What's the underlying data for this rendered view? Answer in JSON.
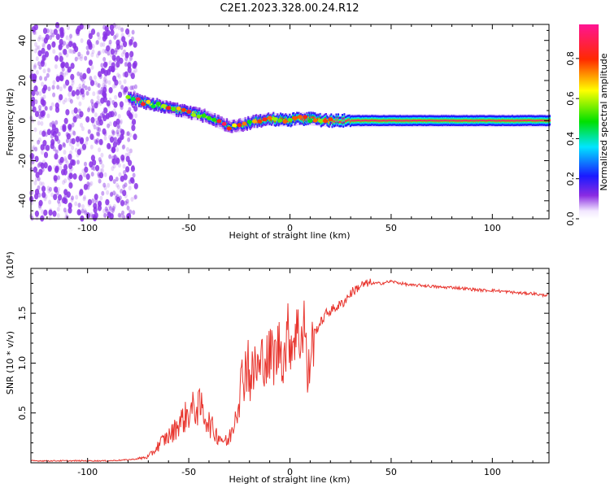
{
  "title": "C2E1.2023.328.00.24.R12",
  "colors": {
    "line": "#e8352e",
    "frame": "#000000",
    "speckle": "#8a33e6",
    "trace_core": "#c8282a"
  },
  "chart_data": [
    {
      "type": "heatmap",
      "title": "C2E1.2023.328.00.24.R12",
      "xlabel": "Height of straight line (km)",
      "ylabel": "Frequency (Hz)",
      "xlim": [
        -128,
        128
      ],
      "ylim": [
        -49,
        48
      ],
      "x_ticks": [
        -100,
        -50,
        0,
        50,
        100
      ],
      "y_ticks": [
        -40,
        -20,
        0,
        20,
        40
      ],
      "colorbar": {
        "label": "Normalized spectral amplitude",
        "range": [
          0,
          0.97
        ],
        "ticks": [
          0.0,
          0.2,
          0.4,
          0.6,
          0.8
        ],
        "colormap": "rainbow (magenta-blue-cyan-green-yellow-red-magenta)",
        "placement": "right"
      },
      "noise_region": {
        "x_range": [
          -128,
          -76
        ],
        "freq_range": [
          -49,
          48
        ],
        "amplitude": "low (0.0-0.1)"
      },
      "trace": {
        "x": [
          -80,
          -75,
          -70,
          -65,
          -60,
          -55,
          -50,
          -45,
          -40,
          -35,
          -30,
          -25,
          -20,
          -15,
          -10,
          -5,
          0,
          5,
          10,
          15,
          20,
          30,
          50,
          70,
          90,
          110,
          128
        ],
        "frequency": [
          11,
          10,
          8.5,
          7.5,
          6.5,
          5,
          4,
          3,
          1.5,
          -1,
          -3,
          -2.5,
          -1,
          0,
          0.8,
          0.3,
          0.3,
          1,
          0.8,
          0.3,
          0,
          0,
          0,
          0,
          0,
          0,
          0
        ],
        "amplitude": [
          0.5,
          0.6,
          0.65,
          0.7,
          0.6,
          0.6,
          0.6,
          0.55,
          0.55,
          0.5,
          0.55,
          0.5,
          0.6,
          0.75,
          0.8,
          0.85,
          0.9,
          0.9,
          0.9,
          0.9,
          0.95,
          0.95,
          0.95,
          0.95,
          0.95,
          0.95,
          0.95
        ]
      }
    },
    {
      "type": "line",
      "xlabel": "Height of straight line (km)",
      "ylabel": "SNR (10 * v/v)",
      "multiplier_label": "(x10⁴)",
      "xlim": [
        -128,
        128
      ],
      "ylim": [
        0,
        1.95
      ],
      "x_ticks": [
        -100,
        -50,
        0,
        50,
        100
      ],
      "y_ticks": [
        0.5,
        1.0,
        1.5
      ],
      "series": [
        {
          "x": [
            -128,
            -110,
            -90,
            -80,
            -75,
            -70,
            -67,
            -64,
            -61,
            -58,
            -55,
            -52,
            -50,
            -47,
            -44,
            -42,
            -40,
            -37,
            -34,
            -31,
            -29,
            -27,
            -25,
            -23,
            -21,
            -19,
            -17,
            -15,
            -13,
            -11,
            -9,
            -7,
            -5,
            -3,
            -1,
            1,
            3,
            5,
            6,
            7,
            8,
            9,
            10,
            12,
            15,
            18,
            22,
            26,
            30,
            35,
            40,
            45,
            50,
            55,
            60,
            65,
            70,
            75,
            80,
            85,
            90,
            95,
            100,
            105,
            110,
            115,
            120,
            125,
            128
          ],
          "y": [
            0.02,
            0.02,
            0.02,
            0.03,
            0.04,
            0.06,
            0.12,
            0.2,
            0.25,
            0.3,
            0.4,
            0.45,
            0.5,
            0.55,
            0.55,
            0.48,
            0.4,
            0.3,
            0.25,
            0.2,
            0.3,
            0.5,
            0.7,
            0.9,
            1.05,
            0.8,
            1.0,
            0.9,
            1.1,
            1.0,
            1.1,
            1.05,
            1.2,
            1.05,
            1.3,
            1.2,
            1.35,
            1.25,
            1.3,
            1.5,
            1.1,
            0.75,
            1.1,
            1.3,
            1.4,
            1.5,
            1.55,
            1.6,
            1.7,
            1.78,
            1.8,
            1.8,
            1.82,
            1.8,
            1.78,
            1.78,
            1.77,
            1.76,
            1.76,
            1.75,
            1.74,
            1.73,
            1.73,
            1.72,
            1.71,
            1.7,
            1.7,
            1.68,
            1.69
          ]
        }
      ]
    }
  ]
}
